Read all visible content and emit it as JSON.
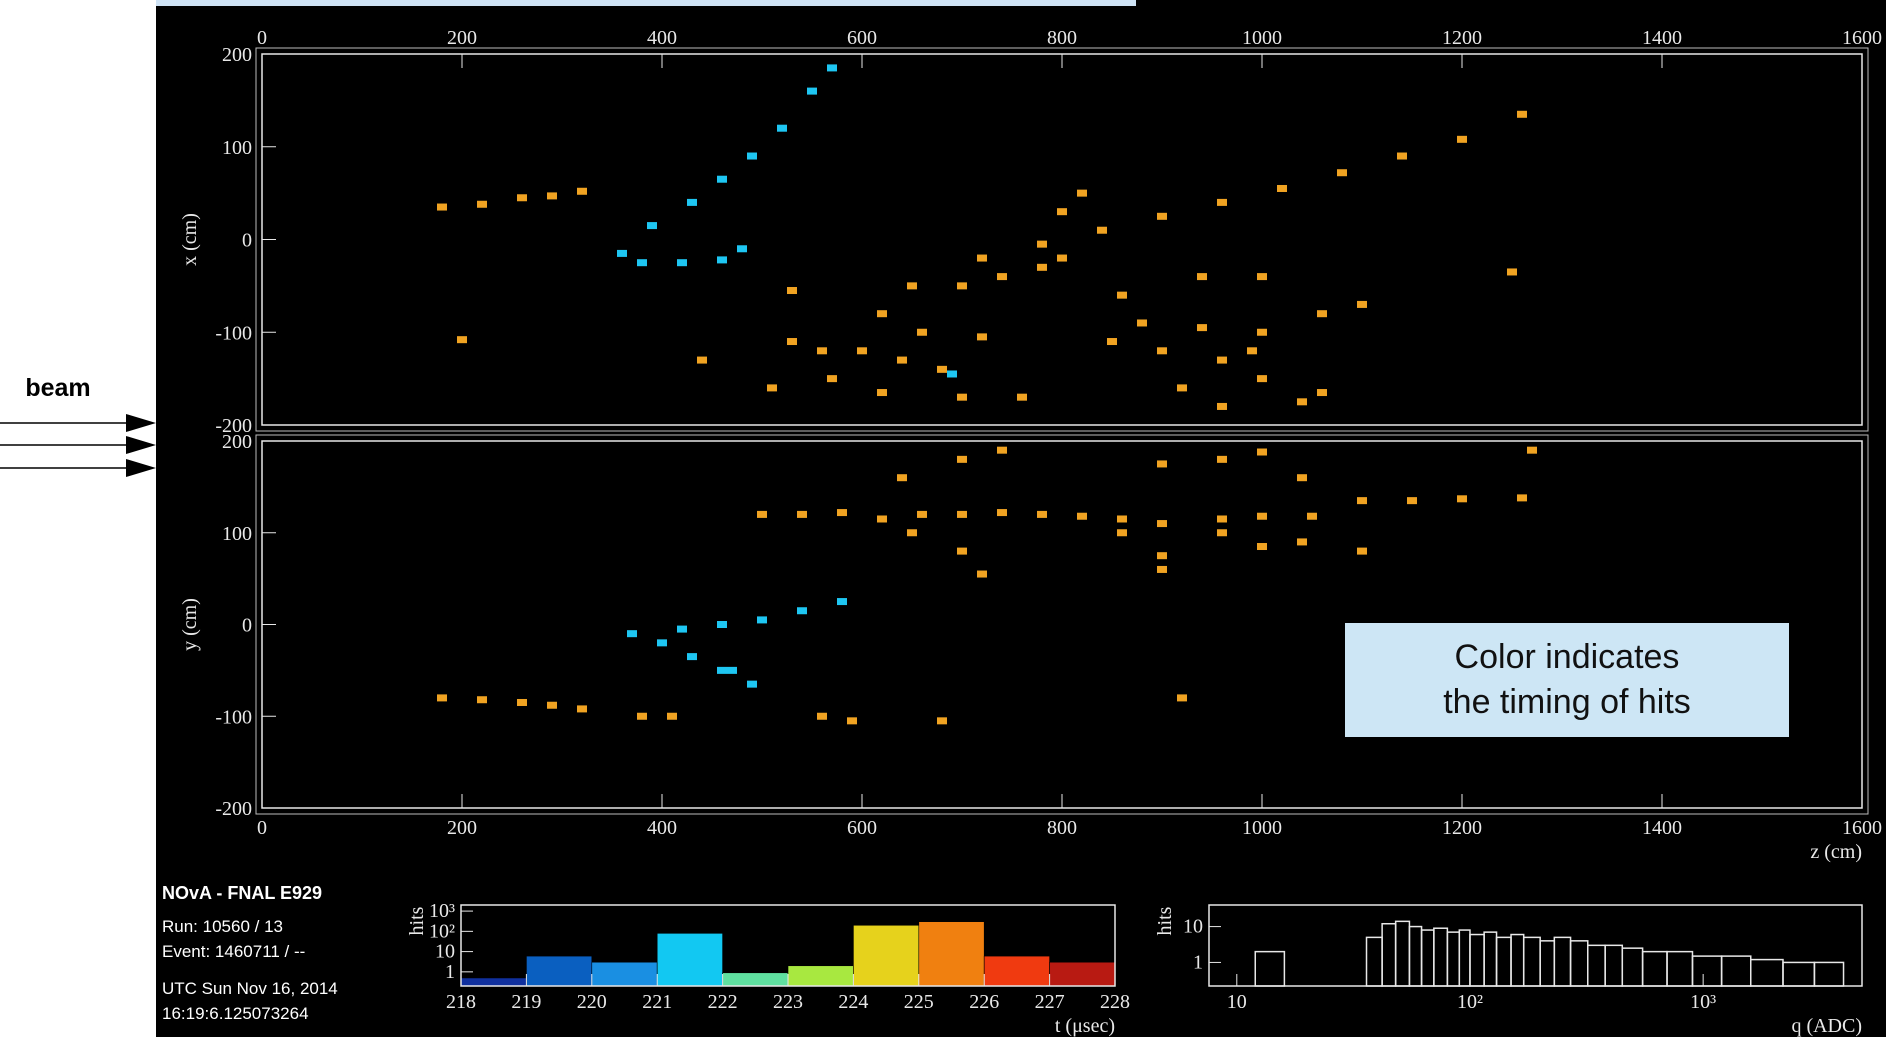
{
  "beam_label": "beam",
  "annotation": [
    "Color indicates",
    "the timing of hits"
  ],
  "info": {
    "experiment": "NOvA - FNAL E929",
    "run": "Run:   10560 / 13",
    "event": "Event: 1460711 / --",
    "date": "UTC Sun Nov 16, 2014",
    "time": "16:19:6.125073264"
  },
  "chart_data": [
    {
      "type": "scatter",
      "ylabel": "x (cm)",
      "xlim": [
        0,
        1600
      ],
      "ylim": [
        -200,
        200
      ],
      "xticks": [
        0,
        200,
        400,
        600,
        800,
        1000,
        1200,
        1400,
        1600
      ],
      "yticks": [
        -200,
        -100,
        0,
        100,
        200
      ],
      "series": [
        {
          "color": "#f0a322",
          "x": [
            180,
            220,
            260,
            290,
            320,
            720,
            780,
            840,
            900,
            960,
            1020,
            1080,
            1140,
            1200,
            1260,
            530,
            560,
            600,
            640,
            680,
            620,
            650,
            700,
            740,
            780,
            800,
            800,
            820,
            660,
            720,
            760,
            700,
            530,
            850,
            900,
            960,
            1000,
            1060,
            880,
            940,
            1000,
            1060,
            1100,
            920,
            960,
            1040,
            860,
            940,
            1000,
            990,
            570,
            620,
            200,
            440,
            510,
            1250
          ],
          "y": [
            35,
            38,
            45,
            47,
            52,
            -20,
            -5,
            10,
            25,
            40,
            55,
            72,
            90,
            108,
            135,
            -110,
            -120,
            -120,
            -130,
            -140,
            -80,
            -50,
            -50,
            -40,
            -30,
            -20,
            30,
            50,
            -100,
            -105,
            -170,
            -170,
            -55,
            -110,
            -120,
            -130,
            -150,
            -165,
            -90,
            -95,
            -100,
            -80,
            -70,
            -160,
            -180,
            -175,
            -60,
            -40,
            -40,
            -120,
            -150,
            -165,
            -108,
            -130,
            -160,
            -35
          ]
        },
        {
          "color": "#1ec6f2",
          "x": [
            360,
            380,
            420,
            460,
            480,
            390,
            430,
            460,
            490,
            520,
            550,
            570,
            690
          ],
          "y": [
            -15,
            -25,
            -25,
            -22,
            -10,
            15,
            40,
            65,
            90,
            120,
            160,
            185,
            -145
          ]
        }
      ]
    },
    {
      "type": "scatter",
      "ylabel": "y (cm)",
      "xlabel": "z (cm)",
      "xlim": [
        0,
        1600
      ],
      "ylim": [
        -200,
        200
      ],
      "xticks": [
        0,
        200,
        400,
        600,
        800,
        1000,
        1200,
        1400,
        1600
      ],
      "yticks": [
        -200,
        -100,
        0,
        100,
        200
      ],
      "series": [
        {
          "color": "#f0a322",
          "x": [
            500,
            540,
            580,
            620,
            660,
            700,
            740,
            780,
            820,
            860,
            900,
            960,
            1000,
            1050,
            1100,
            1150,
            1200,
            1260,
            640,
            700,
            740,
            960,
            900,
            1000,
            1040,
            960,
            1000,
            1040,
            1100,
            860,
            900,
            900,
            700,
            720,
            650,
            1270,
            180,
            220,
            260,
            290,
            320,
            380,
            410,
            560,
            590,
            680,
            920
          ],
          "y": [
            120,
            120,
            122,
            115,
            120,
            120,
            122,
            120,
            118,
            115,
            110,
            115,
            118,
            118,
            135,
            135,
            137,
            138,
            160,
            180,
            190,
            180,
            175,
            188,
            160,
            100,
            85,
            90,
            80,
            100,
            75,
            60,
            80,
            55,
            100,
            190,
            -80,
            -82,
            -85,
            -88,
            -92,
            -100,
            -100,
            -100,
            -105,
            -105,
            -80
          ]
        },
        {
          "color": "#1ec6f2",
          "x": [
            370,
            420,
            460,
            500,
            540,
            580,
            400,
            430,
            460,
            490,
            470
          ],
          "y": [
            -10,
            -5,
            0,
            5,
            15,
            25,
            -20,
            -35,
            -50,
            -65,
            -50
          ]
        }
      ]
    },
    {
      "type": "histogram",
      "ylabel": "hits",
      "xlabel": "t (μsec)",
      "log_y": true,
      "bins": [
        218,
        219,
        220,
        221,
        222,
        223,
        224,
        225,
        226,
        227,
        228
      ],
      "values": [
        0.5,
        6,
        3,
        80,
        0.9,
        2,
        200,
        300,
        6,
        3
      ],
      "colors": [
        "#10309e",
        "#0a5fc0",
        "#1a8fe2",
        "#12c8f2",
        "#5fe0a0",
        "#a8e840",
        "#e6d21c",
        "#f08010",
        "#f03a10",
        "#b81a12"
      ],
      "xlim": [
        218,
        228
      ],
      "ylim": [
        0.2,
        2000
      ],
      "xticks": [
        218,
        219,
        220,
        221,
        222,
        223,
        224,
        225,
        226,
        227,
        228
      ],
      "yticks": [
        1,
        10,
        {
          "value": 100,
          "label": "10²"
        },
        {
          "value": 1000,
          "label": "10³"
        }
      ]
    },
    {
      "type": "histogram",
      "ylabel": "hits",
      "xlabel": "q (ADC)",
      "log_x": true,
      "log_y": true,
      "color": "#e8e8e8",
      "bins": [
        12,
        16,
        36,
        42,
        48,
        55,
        62,
        70,
        80,
        90,
        100,
        115,
        130,
        150,
        170,
        200,
        230,
        270,
        320,
        380,
        450,
        550,
        700,
        900,
        1200,
        1600,
        2200,
        3000,
        4000
      ],
      "values": [
        2,
        0,
        5,
        12,
        14,
        10,
        8,
        9,
        7,
        8,
        6,
        7,
        5,
        6,
        5,
        4,
        5,
        4,
        3,
        3,
        2.5,
        2,
        2,
        1.5,
        1.5,
        1.2,
        1,
        1
      ],
      "xlim": [
        7.6,
        4800
      ],
      "ylim": [
        0.22,
        40
      ],
      "xticks": [
        10,
        {
          "value": 100,
          "label": "10²"
        },
        {
          "value": 1000,
          "label": "10³"
        }
      ],
      "yticks": [
        1,
        10
      ]
    }
  ]
}
